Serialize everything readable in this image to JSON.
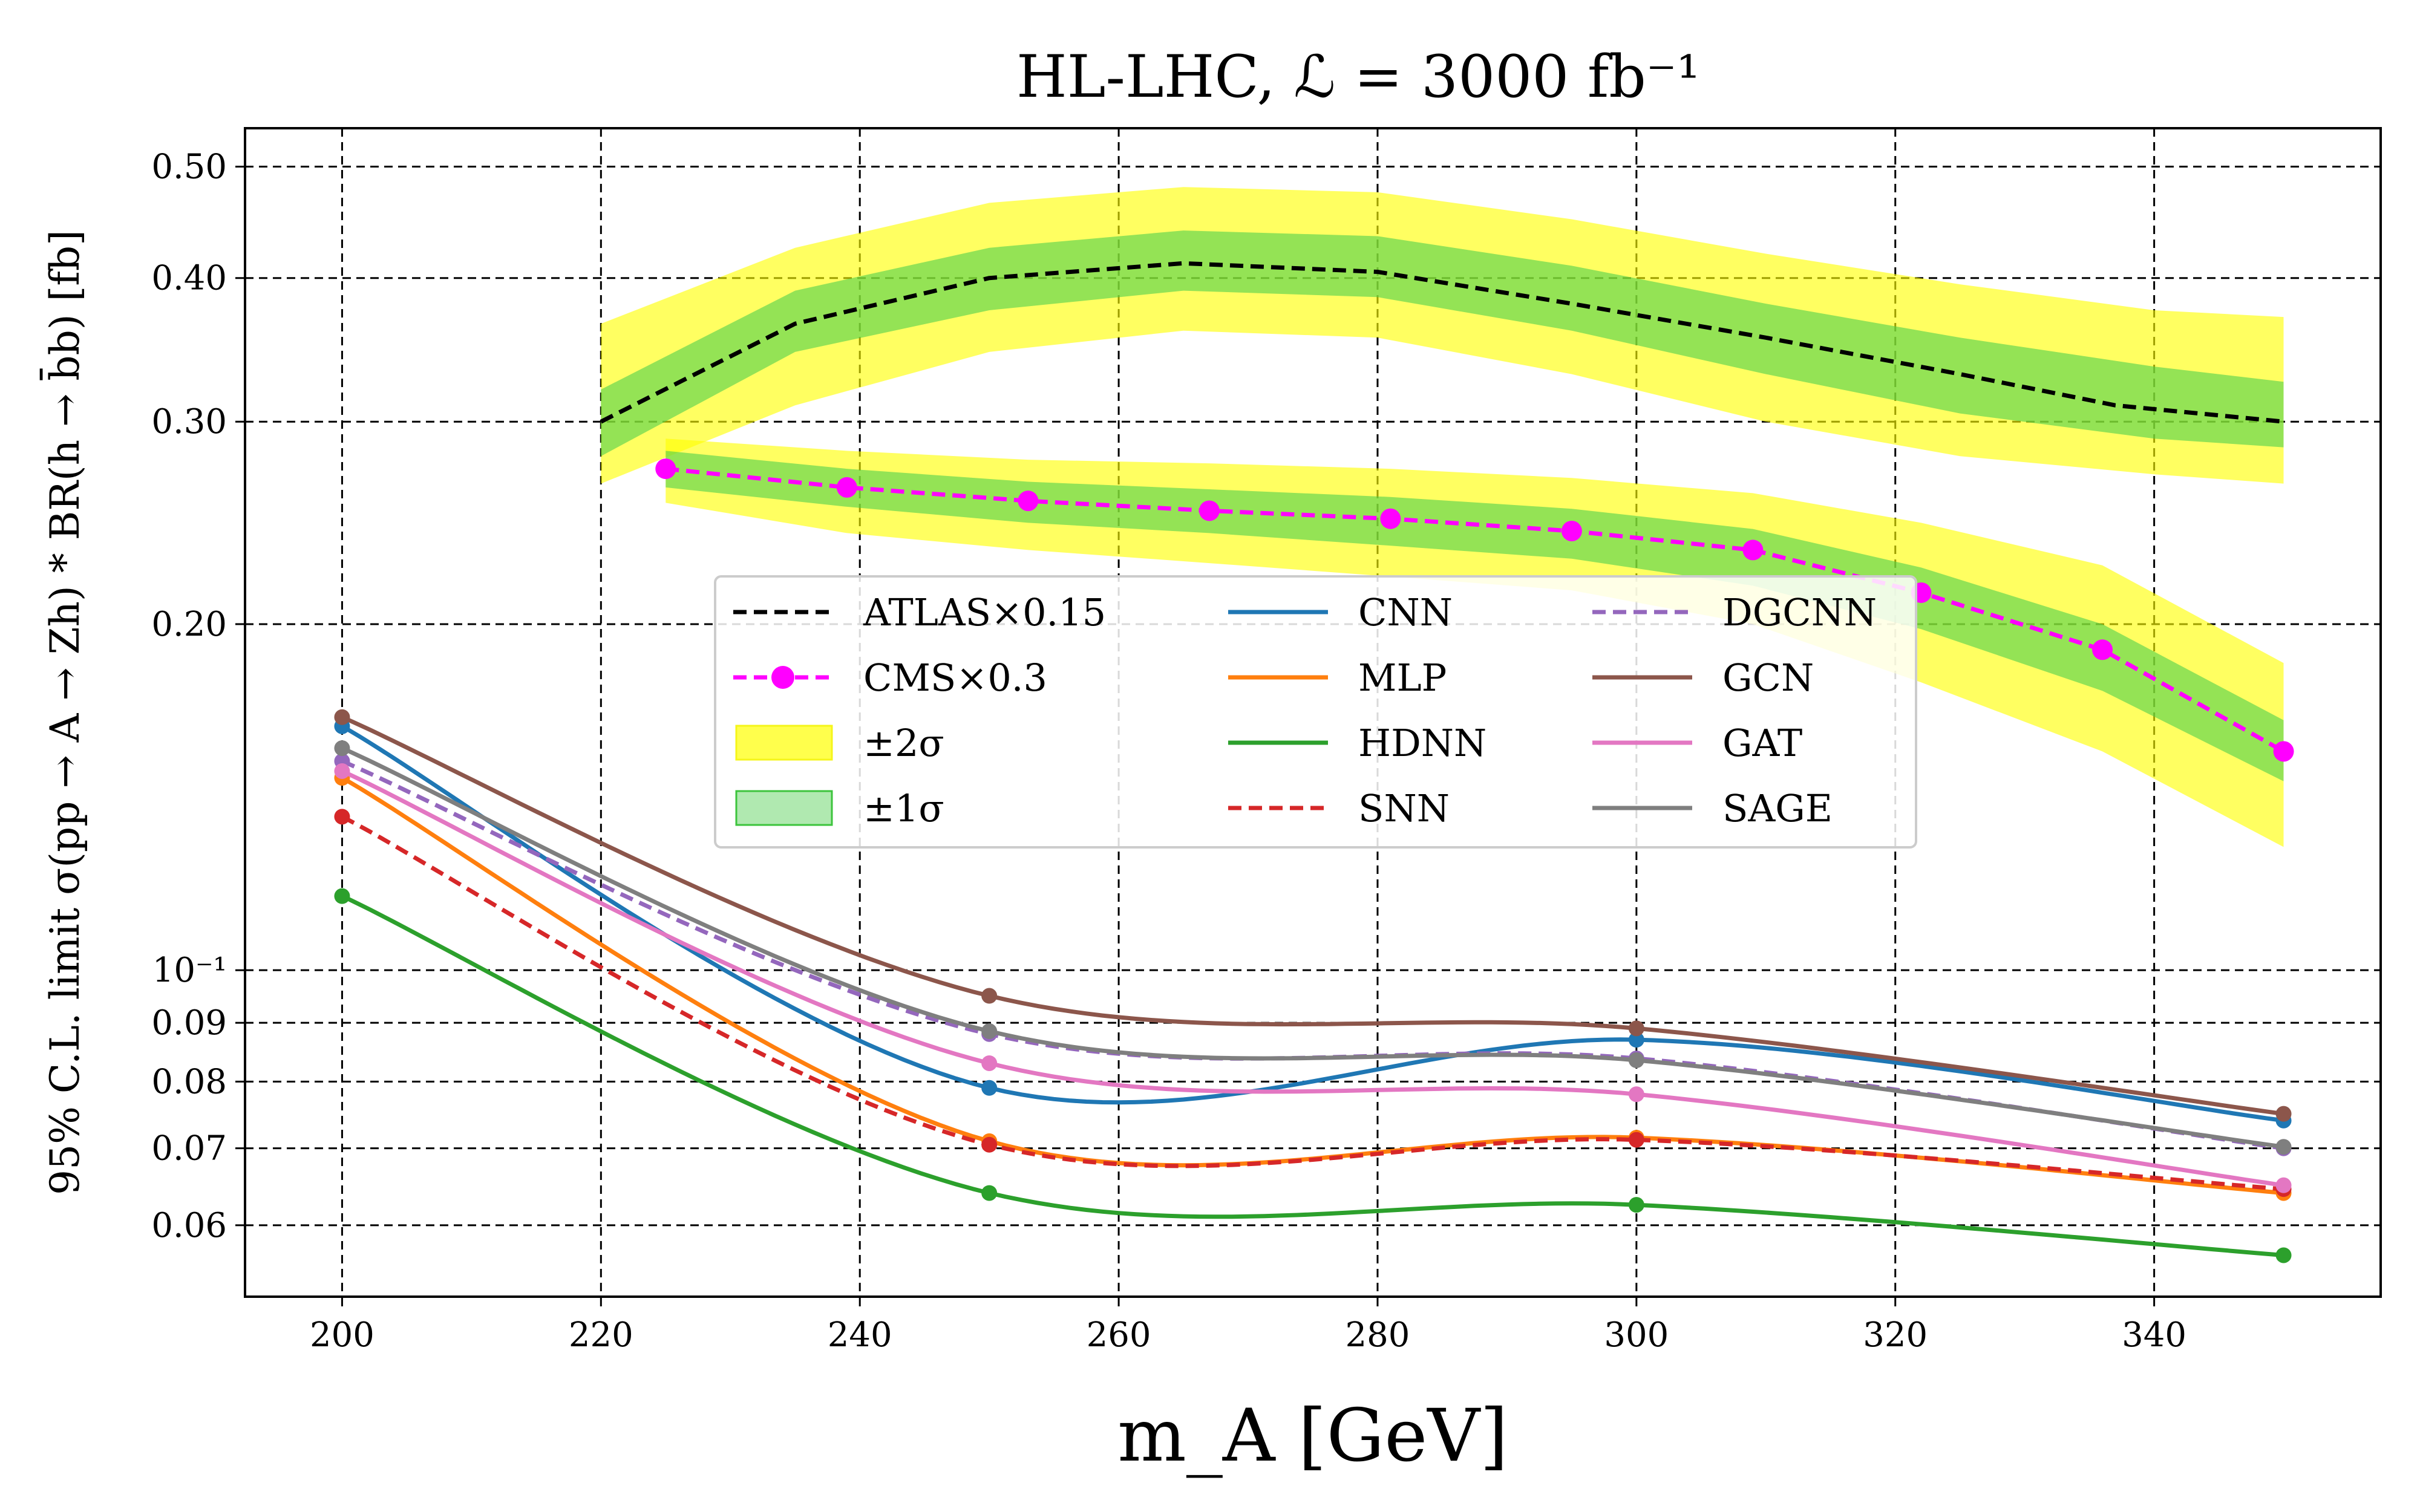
{
  "chart_data": {
    "type": "line",
    "title": "HL-LHC, ℒ = 3000 fb⁻¹",
    "xlabel": "m_A [GeV]",
    "ylabel": "95% C.L. limit σ(pp → A → Zh) * BR(h → b̄b) [fb]",
    "yscale": "log",
    "xlim": [
      192.5,
      357.5
    ],
    "ylim": [
      0.052,
      0.54
    ],
    "grid": true,
    "legend_position": "center",
    "x_ticks": [
      {
        "value": 200,
        "label": "200"
      },
      {
        "value": 220,
        "label": "220"
      },
      {
        "value": 240,
        "label": "240"
      },
      {
        "value": 260,
        "label": "260"
      },
      {
        "value": 280,
        "label": "280"
      },
      {
        "value": 300,
        "label": "300"
      },
      {
        "value": 320,
        "label": "320"
      },
      {
        "value": 340,
        "label": "340"
      }
    ],
    "y_ticks": [
      {
        "value": 0.06,
        "label": "0.06"
      },
      {
        "value": 0.07,
        "label": "0.07"
      },
      {
        "value": 0.08,
        "label": "0.08"
      },
      {
        "value": 0.09,
        "label": "0.09"
      },
      {
        "value": 0.1,
        "label": "10⁻¹"
      },
      {
        "value": 0.2,
        "label": "0.20"
      },
      {
        "value": 0.3,
        "label": "0.30"
      },
      {
        "value": 0.4,
        "label": "0.40"
      },
      {
        "value": 0.5,
        "label": "0.50"
      }
    ],
    "bands": [
      {
        "name": "ATLAS ±2σ",
        "color": "#ffff00",
        "opacity": 0.62,
        "x": [
          220,
          235,
          250,
          265,
          280,
          295,
          310,
          325,
          340,
          350
        ],
        "lower": [
          0.265,
          0.31,
          0.345,
          0.36,
          0.355,
          0.33,
          0.3,
          0.28,
          0.27,
          0.265
        ],
        "upper": [
          0.365,
          0.425,
          0.465,
          0.48,
          0.475,
          0.45,
          0.42,
          0.395,
          0.375,
          0.37
        ]
      },
      {
        "name": "ATLAS ±1σ",
        "color": "#4cd04c",
        "opacity": 0.6,
        "x": [
          220,
          235,
          250,
          265,
          280,
          295,
          310,
          325,
          340,
          350
        ],
        "lower": [
          0.28,
          0.345,
          0.375,
          0.39,
          0.385,
          0.36,
          0.33,
          0.305,
          0.29,
          0.285
        ],
        "upper": [
          0.32,
          0.39,
          0.425,
          0.44,
          0.435,
          0.41,
          0.38,
          0.355,
          0.335,
          0.325
        ]
      },
      {
        "name": "CMS ±2σ",
        "color": "#ffff00",
        "opacity": 0.62,
        "x": [
          225,
          239,
          253,
          267,
          281,
          295,
          309,
          322,
          336,
          350
        ],
        "lower": [
          0.255,
          0.24,
          0.232,
          0.226,
          0.22,
          0.214,
          0.2,
          0.178,
          0.155,
          0.128
        ],
        "upper": [
          0.29,
          0.283,
          0.278,
          0.276,
          0.273,
          0.268,
          0.26,
          0.245,
          0.225,
          0.185
        ]
      },
      {
        "name": "CMS ±1σ",
        "color": "#4cd04c",
        "opacity": 0.6,
        "x": [
          225,
          239,
          253,
          267,
          281,
          295,
          309,
          322,
          336,
          350
        ],
        "lower": [
          0.263,
          0.253,
          0.245,
          0.24,
          0.234,
          0.228,
          0.216,
          0.198,
          0.175,
          0.146
        ],
        "upper": [
          0.283,
          0.273,
          0.266,
          0.262,
          0.258,
          0.252,
          0.242,
          0.224,
          0.2,
          0.165
        ]
      }
    ],
    "series": [
      {
        "name": "ATLAS×0.15",
        "color": "#000000",
        "dash": "22 12",
        "marker": false,
        "smooth": false,
        "x": [
          220,
          235,
          250,
          265,
          280,
          295,
          310,
          325,
          337,
          350
        ],
        "y": [
          0.3,
          0.365,
          0.4,
          0.412,
          0.405,
          0.38,
          0.355,
          0.33,
          0.31,
          0.3
        ]
      },
      {
        "name": "CMS×0.3",
        "color": "#ff00ff",
        "dash": "22 12",
        "marker": true,
        "marker_size": 17,
        "smooth": false,
        "x": [
          225,
          239,
          253,
          267,
          281,
          295,
          309,
          322,
          336,
          350
        ],
        "y": [
          0.273,
          0.263,
          0.256,
          0.251,
          0.247,
          0.241,
          0.232,
          0.213,
          0.19,
          0.155
        ]
      },
      {
        "name": "CNN",
        "color": "#1f77b4",
        "dash": "",
        "marker": true,
        "smooth": true,
        "x": [
          200,
          250,
          300,
          350
        ],
        "y": [
          0.163,
          0.079,
          0.087,
          0.074
        ]
      },
      {
        "name": "MLP",
        "color": "#ff7f0e",
        "dash": "",
        "marker": true,
        "smooth": true,
        "x": [
          200,
          250,
          300,
          350
        ],
        "y": [
          0.147,
          0.071,
          0.0715,
          0.064
        ]
      },
      {
        "name": "HDNN",
        "color": "#2ca02c",
        "dash": "",
        "marker": true,
        "smooth": true,
        "x": [
          200,
          250,
          300,
          350
        ],
        "y": [
          0.116,
          0.064,
          0.0625,
          0.0565
        ]
      },
      {
        "name": "SNN",
        "color": "#d62728",
        "dash": "22 12",
        "marker": true,
        "smooth": true,
        "x": [
          200,
          250,
          300,
          350
        ],
        "y": [
          0.136,
          0.0705,
          0.0712,
          0.0645
        ]
      },
      {
        "name": "DGCNN",
        "color": "#9467bd",
        "dash": "22 12",
        "marker": true,
        "smooth": true,
        "x": [
          200,
          250,
          300,
          350
        ],
        "y": [
          0.152,
          0.088,
          0.0838,
          0.07
        ]
      },
      {
        "name": "GCN",
        "color": "#8c564b",
        "dash": "",
        "marker": true,
        "smooth": true,
        "x": [
          200,
          250,
          300,
          350
        ],
        "y": [
          0.166,
          0.095,
          0.089,
          0.075
        ]
      },
      {
        "name": "GAT",
        "color": "#e377c2",
        "dash": "",
        "marker": true,
        "smooth": true,
        "x": [
          200,
          250,
          300,
          350
        ],
        "y": [
          0.149,
          0.083,
          0.078,
          0.065
        ]
      },
      {
        "name": "SAGE",
        "color": "#7f7f7f",
        "dash": "",
        "marker": true,
        "smooth": true,
        "x": [
          200,
          250,
          300,
          350
        ],
        "y": [
          0.156,
          0.0885,
          0.0835,
          0.0702
        ]
      }
    ],
    "legend": {
      "columns": [
        [
          {
            "label": "ATLAS×0.15",
            "kind": "line",
            "color": "#000000",
            "dash": "22 12",
            "marker": false
          },
          {
            "label": "CMS×0.3",
            "kind": "line",
            "color": "#ff00ff",
            "dash": "22 12",
            "marker": true
          },
          {
            "label": "±2σ",
            "kind": "patch",
            "color": "#ffff00",
            "edge": "#f5f51a"
          },
          {
            "label": "±1σ",
            "kind": "patch",
            "color": "#8fe08f",
            "edge": "#3cc43c"
          }
        ],
        [
          {
            "label": "CNN",
            "kind": "line",
            "color": "#1f77b4",
            "dash": "",
            "marker": false
          },
          {
            "label": "MLP",
            "kind": "line",
            "color": "#ff7f0e",
            "dash": "",
            "marker": false
          },
          {
            "label": "HDNN",
            "kind": "line",
            "color": "#2ca02c",
            "dash": "",
            "marker": false
          },
          {
            "label": "SNN",
            "kind": "line",
            "color": "#d62728",
            "dash": "22 12",
            "marker": false
          }
        ],
        [
          {
            "label": "DGCNN",
            "kind": "line",
            "color": "#9467bd",
            "dash": "22 12",
            "marker": false
          },
          {
            "label": "GCN",
            "kind": "line",
            "color": "#8c564b",
            "dash": "",
            "marker": false
          },
          {
            "label": "GAT",
            "kind": "line",
            "color": "#e377c2",
            "dash": "",
            "marker": false
          },
          {
            "label": "SAGE",
            "kind": "line",
            "color": "#7f7f7f",
            "dash": "",
            "marker": false
          }
        ]
      ]
    }
  }
}
